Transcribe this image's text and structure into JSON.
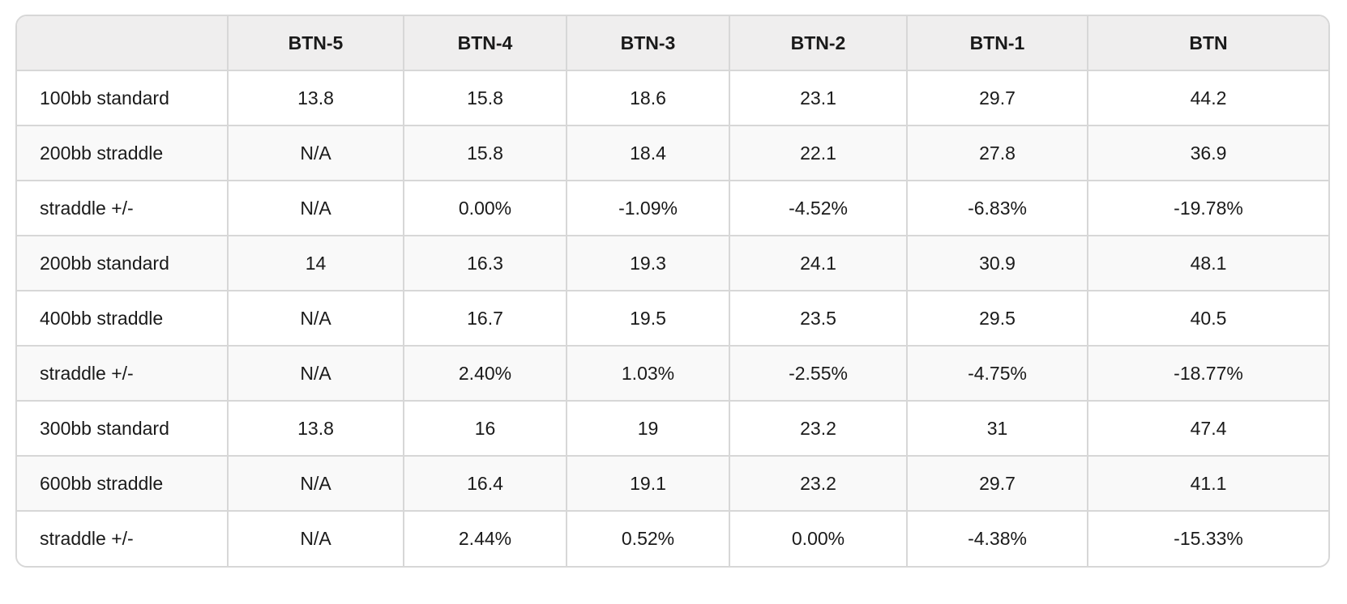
{
  "table": {
    "columns": [
      "",
      "BTN-5",
      "BTN-4",
      "BTN-3",
      "BTN-2",
      "BTN-1",
      "BTN"
    ],
    "rows": [
      [
        "100bb standard",
        "13.8",
        "15.8",
        "18.6",
        "23.1",
        "29.7",
        "44.2"
      ],
      [
        "200bb straddle",
        "N/A",
        "15.8",
        "18.4",
        "22.1",
        "27.8",
        "36.9"
      ],
      [
        "straddle +/-",
        "N/A",
        "0.00%",
        "-1.09%",
        "-4.52%",
        "-6.83%",
        "-19.78%"
      ],
      [
        "200bb standard",
        "14",
        "16.3",
        "19.3",
        "24.1",
        "30.9",
        "48.1"
      ],
      [
        "400bb straddle",
        "N/A",
        "16.7",
        "19.5",
        "23.5",
        "29.5",
        "40.5"
      ],
      [
        "straddle +/-",
        "N/A",
        "2.40%",
        "1.03%",
        "-2.55%",
        "-4.75%",
        "-18.77%"
      ],
      [
        "300bb standard",
        "13.8",
        "16",
        "19",
        "23.2",
        "31",
        "47.4"
      ],
      [
        "600bb straddle",
        "N/A",
        "16.4",
        "19.1",
        "23.2",
        "29.7",
        "41.1"
      ],
      [
        "straddle +/-",
        "N/A",
        "2.44%",
        "0.52%",
        "0.00%",
        "-4.38%",
        "-15.33%"
      ]
    ]
  }
}
